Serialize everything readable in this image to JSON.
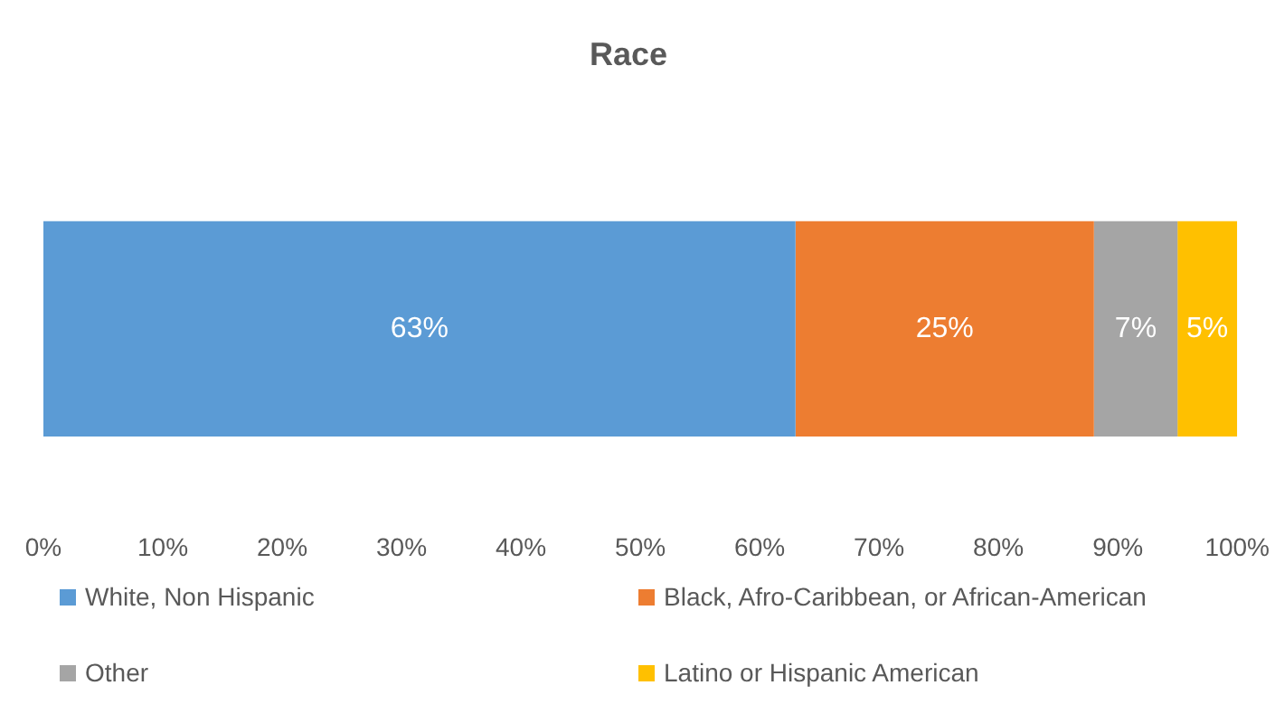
{
  "chart_data": {
    "type": "bar",
    "title": "Race",
    "orientation": "horizontal",
    "stacked": true,
    "categories": [
      null
    ],
    "series": [
      {
        "name": "White, Non Hispanic",
        "color": "#5b9bd5",
        "values": [
          63
        ],
        "value_labels": [
          "63%"
        ]
      },
      {
        "name": "Black, Afro-Caribbean, or African-American",
        "color": "#ed7d31",
        "values": [
          25
        ],
        "value_labels": [
          "25%"
        ]
      },
      {
        "name": "Other",
        "color": "#a5a5a5",
        "values": [
          7
        ],
        "value_labels": [
          "7%"
        ]
      },
      {
        "name": "Latino or Hispanic American",
        "color": "#ffc000",
        "values": [
          5
        ],
        "value_labels": [
          "5%"
        ]
      }
    ],
    "xlim": [
      0,
      100
    ],
    "xticks": [
      {
        "value": 0,
        "label": "0%"
      },
      {
        "value": 10,
        "label": "10%"
      },
      {
        "value": 20,
        "label": "20%"
      },
      {
        "value": 30,
        "label": "30%"
      },
      {
        "value": 40,
        "label": "40%"
      },
      {
        "value": 50,
        "label": "50%"
      },
      {
        "value": 60,
        "label": "60%"
      },
      {
        "value": 70,
        "label": "70%"
      },
      {
        "value": 80,
        "label": "80%"
      },
      {
        "value": 90,
        "label": "90%"
      },
      {
        "value": 100,
        "label": "100%"
      }
    ],
    "grid": false,
    "legend": "bottom"
  }
}
